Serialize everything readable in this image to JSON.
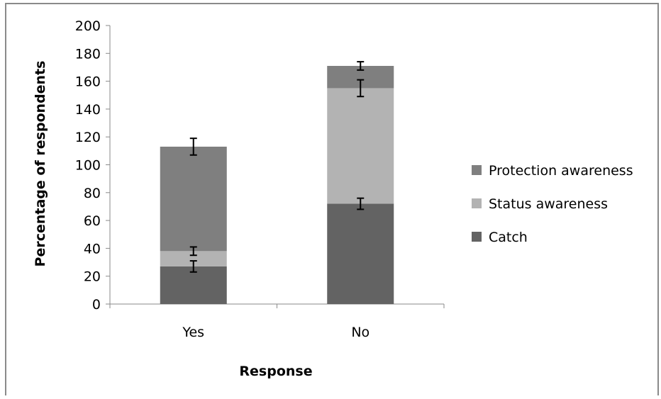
{
  "chart_data": {
    "type": "bar",
    "stacked": true,
    "categories": [
      "Yes",
      "No"
    ],
    "series": [
      {
        "name": "Catch",
        "values": [
          27,
          72
        ],
        "errors": [
          4,
          4
        ],
        "color": "#636363"
      },
      {
        "name": "Status awareness",
        "values": [
          11,
          83
        ],
        "errors": [
          3,
          6
        ],
        "color": "#b3b3b3"
      },
      {
        "name": "Protection awareness",
        "values": [
          75,
          16
        ],
        "errors": [
          6,
          3
        ],
        "color": "#7f7f7f"
      }
    ],
    "title": "",
    "xlabel": "Response",
    "ylabel": "Percentage of respondents",
    "ylim": [
      0,
      200
    ],
    "yticks": [
      "0",
      "20",
      "40",
      "60",
      "80",
      "100",
      "120",
      "140",
      "160",
      "180",
      "200"
    ],
    "grid": false,
    "legend_position": "right"
  }
}
